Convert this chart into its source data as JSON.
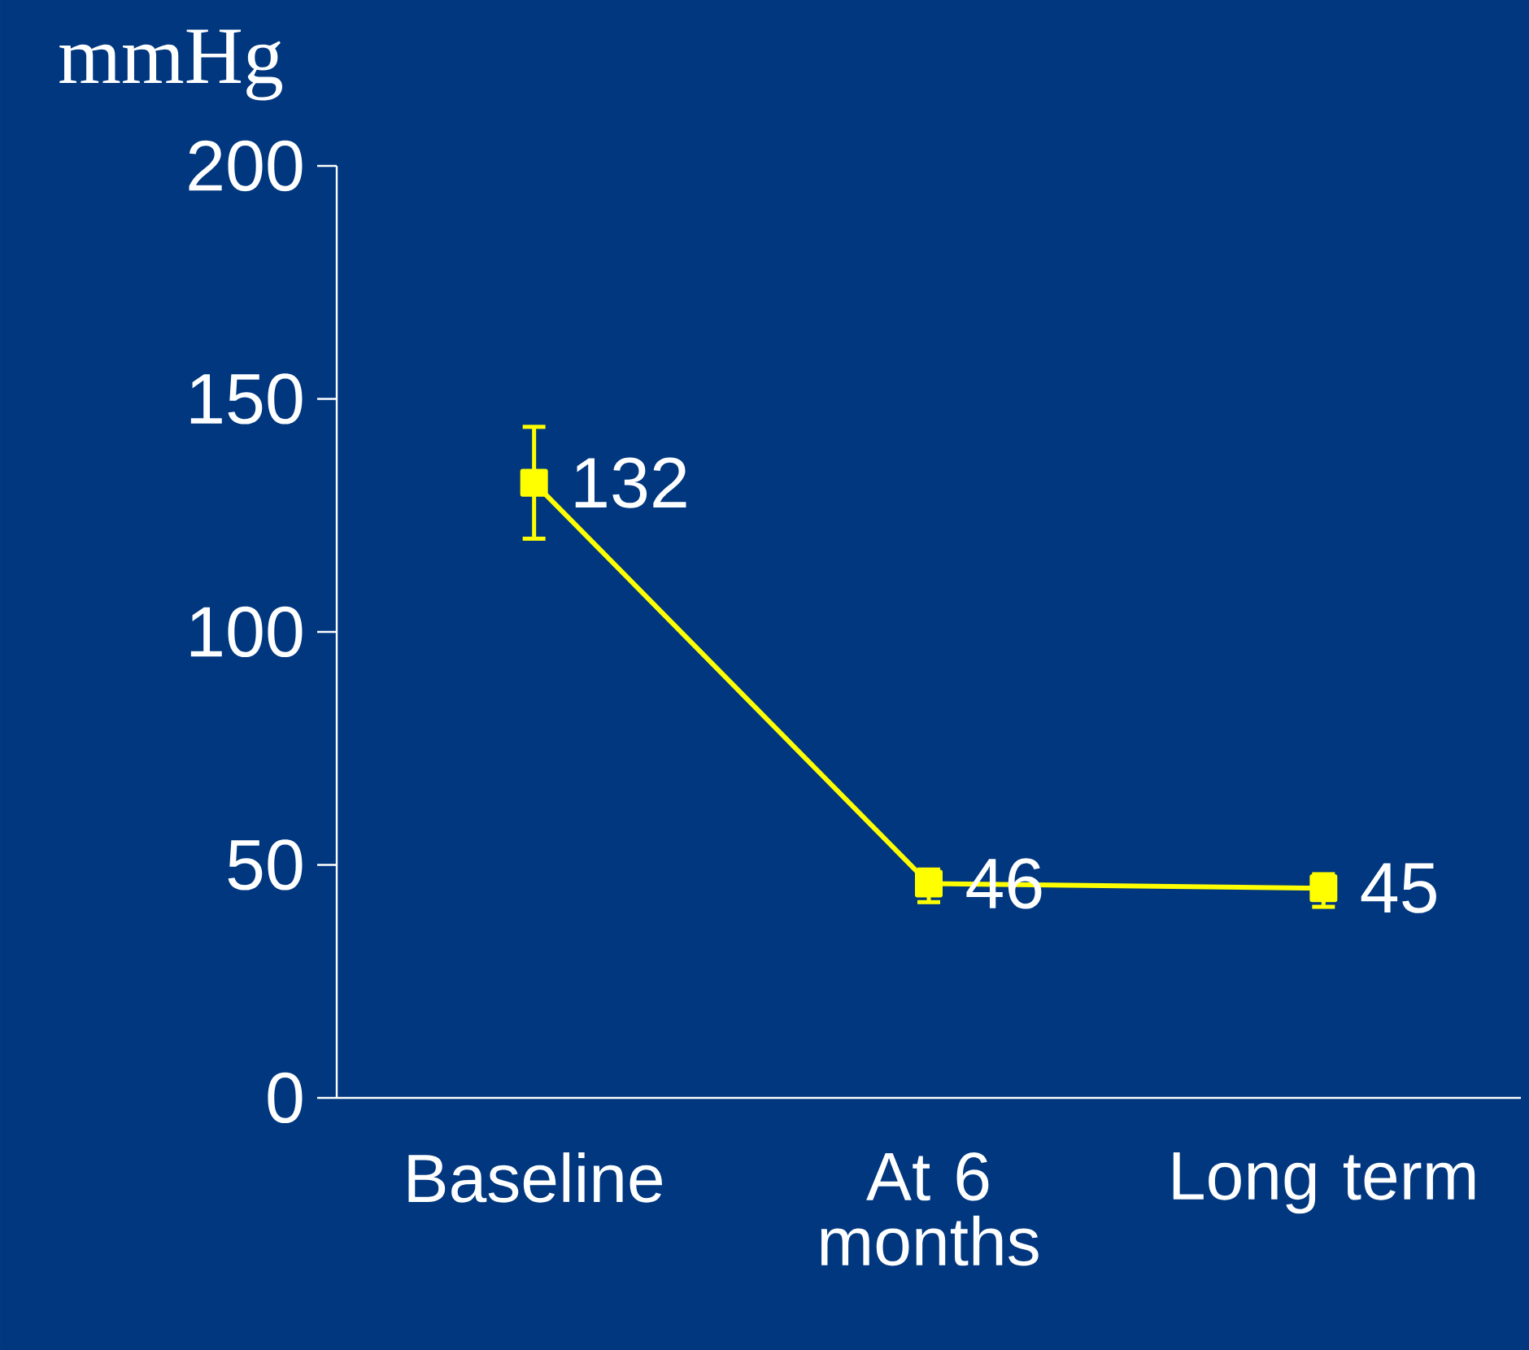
{
  "chart_data": {
    "type": "line",
    "ylabel": "mmHg",
    "categories": [
      "Baseline",
      "At 6 months",
      "Long term"
    ],
    "values": [
      132,
      46,
      45
    ],
    "errors": [
      [
        120,
        144
      ],
      [
        42,
        49
      ],
      [
        41,
        48
      ]
    ],
    "color": "#ffff00",
    "marker": "square",
    "line_style": "solid",
    "ylim": [
      0,
      200
    ],
    "yticks": [
      0,
      50,
      100,
      150,
      200
    ],
    "data_labels": true,
    "grid": false
  }
}
